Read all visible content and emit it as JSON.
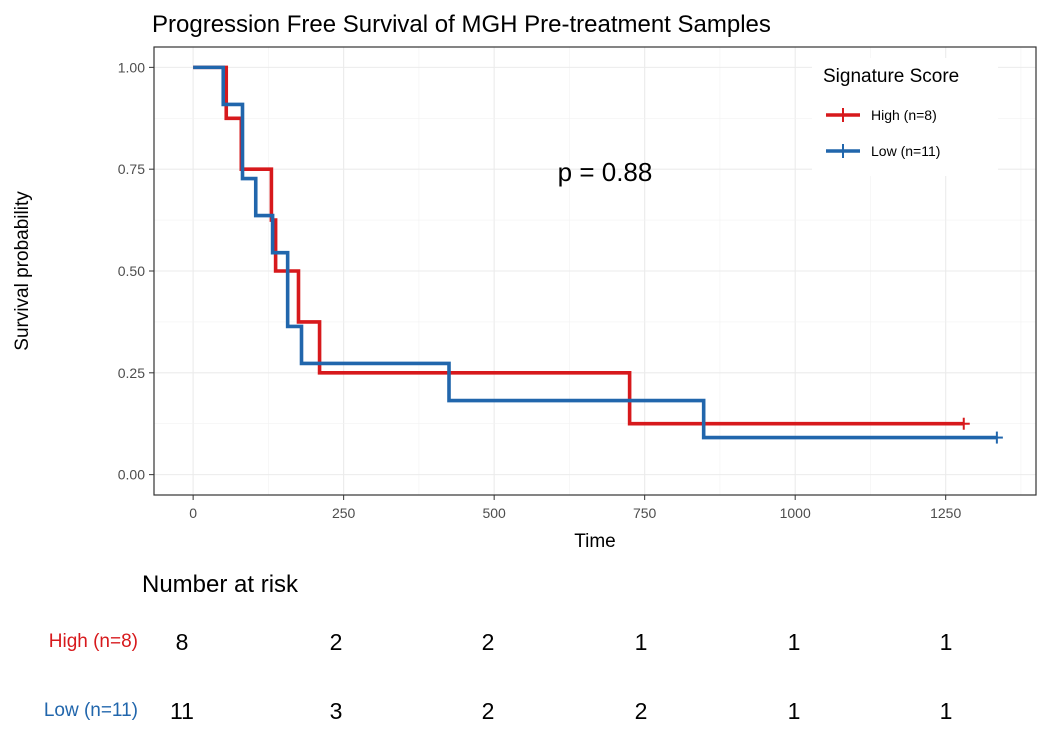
{
  "chart_data": {
    "type": "line",
    "subtype": "kaplan-meier step",
    "title": "Progression Free Survival of MGH Pre-treatment Samples",
    "xlabel": "Time",
    "ylabel": "Survival probability",
    "xlim": [
      -65,
      1400
    ],
    "ylim": [
      -0.05,
      1.05
    ],
    "x_ticks": [
      0,
      250,
      500,
      750,
      1000,
      1250
    ],
    "x_tick_labels": [
      "0",
      "250",
      "500",
      "750",
      "1000",
      "1250"
    ],
    "y_ticks": [
      0,
      0.25,
      0.5,
      0.75,
      1
    ],
    "y_tick_labels": [
      "0.00",
      "0.25",
      "0.50",
      "0.75",
      "1.00"
    ],
    "grid": true,
    "legend": {
      "title": "Signature Score",
      "position": "top-right"
    },
    "annotation": "p = 0.88",
    "series": [
      {
        "name": "High (n=8)",
        "color": "#d7191c",
        "times": [
          0,
          55,
          80,
          130,
          137,
          175,
          210,
          725,
          1280
        ],
        "survival": [
          1.0,
          0.875,
          0.75,
          0.625,
          0.5,
          0.375,
          0.25,
          0.125,
          0.125
        ],
        "censored_x": [
          1280
        ]
      },
      {
        "name": "Low (n=11)",
        "color": "#2166ac",
        "times": [
          0,
          50,
          82,
          104,
          132,
          157,
          180,
          425,
          848,
          1335
        ],
        "survival": [
          1.0,
          0.909,
          0.727,
          0.636,
          0.545,
          0.364,
          0.273,
          0.182,
          0.091,
          0.091
        ],
        "censored_x": [
          1335
        ]
      }
    ],
    "risk_table": {
      "title": "Number at risk",
      "times": [
        0,
        250,
        500,
        750,
        1000,
        1250
      ],
      "rows": [
        {
          "label": "High (n=8)",
          "color": "#d7191c",
          "values": [
            "8",
            "2",
            "2",
            "1",
            "1",
            "1"
          ]
        },
        {
          "label": "Low (n=11)",
          "color": "#2166ac",
          "values": [
            "11",
            "3",
            "2",
            "2",
            "1",
            "1"
          ]
        }
      ]
    }
  }
}
